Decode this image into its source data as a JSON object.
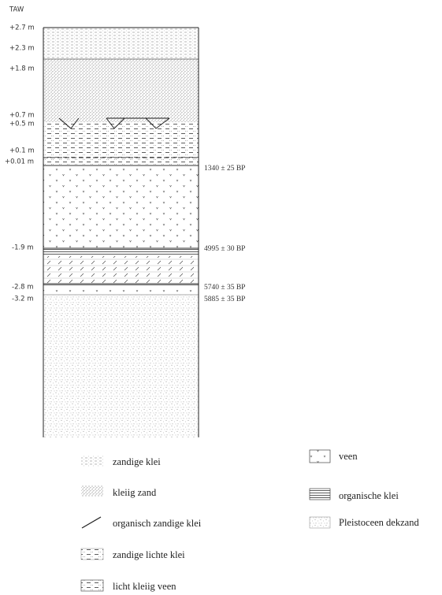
{
  "axis_label": "TAW",
  "depth_labels": [
    "+2.7 m",
    "+2.3 m",
    "+1.8 m",
    "+0.7 m",
    "+0.5 m",
    "+0.1 m",
    "+0.01 m",
    "-1.9 m",
    "-2.8 m",
    "-3.2 m"
  ],
  "dates": [
    "1340 ± 25 BP",
    "4995 ± 30 BP",
    "5740 ± 35 BP",
    "5885 ± 35 BP"
  ],
  "legend": [
    "zandige klei",
    "kleiig zand",
    "organisch zandige klei",
    "zandige lichte klei",
    "licht kleiig veen",
    "veen",
    "organische klei",
    "Pleistoceen dekzand"
  ]
}
